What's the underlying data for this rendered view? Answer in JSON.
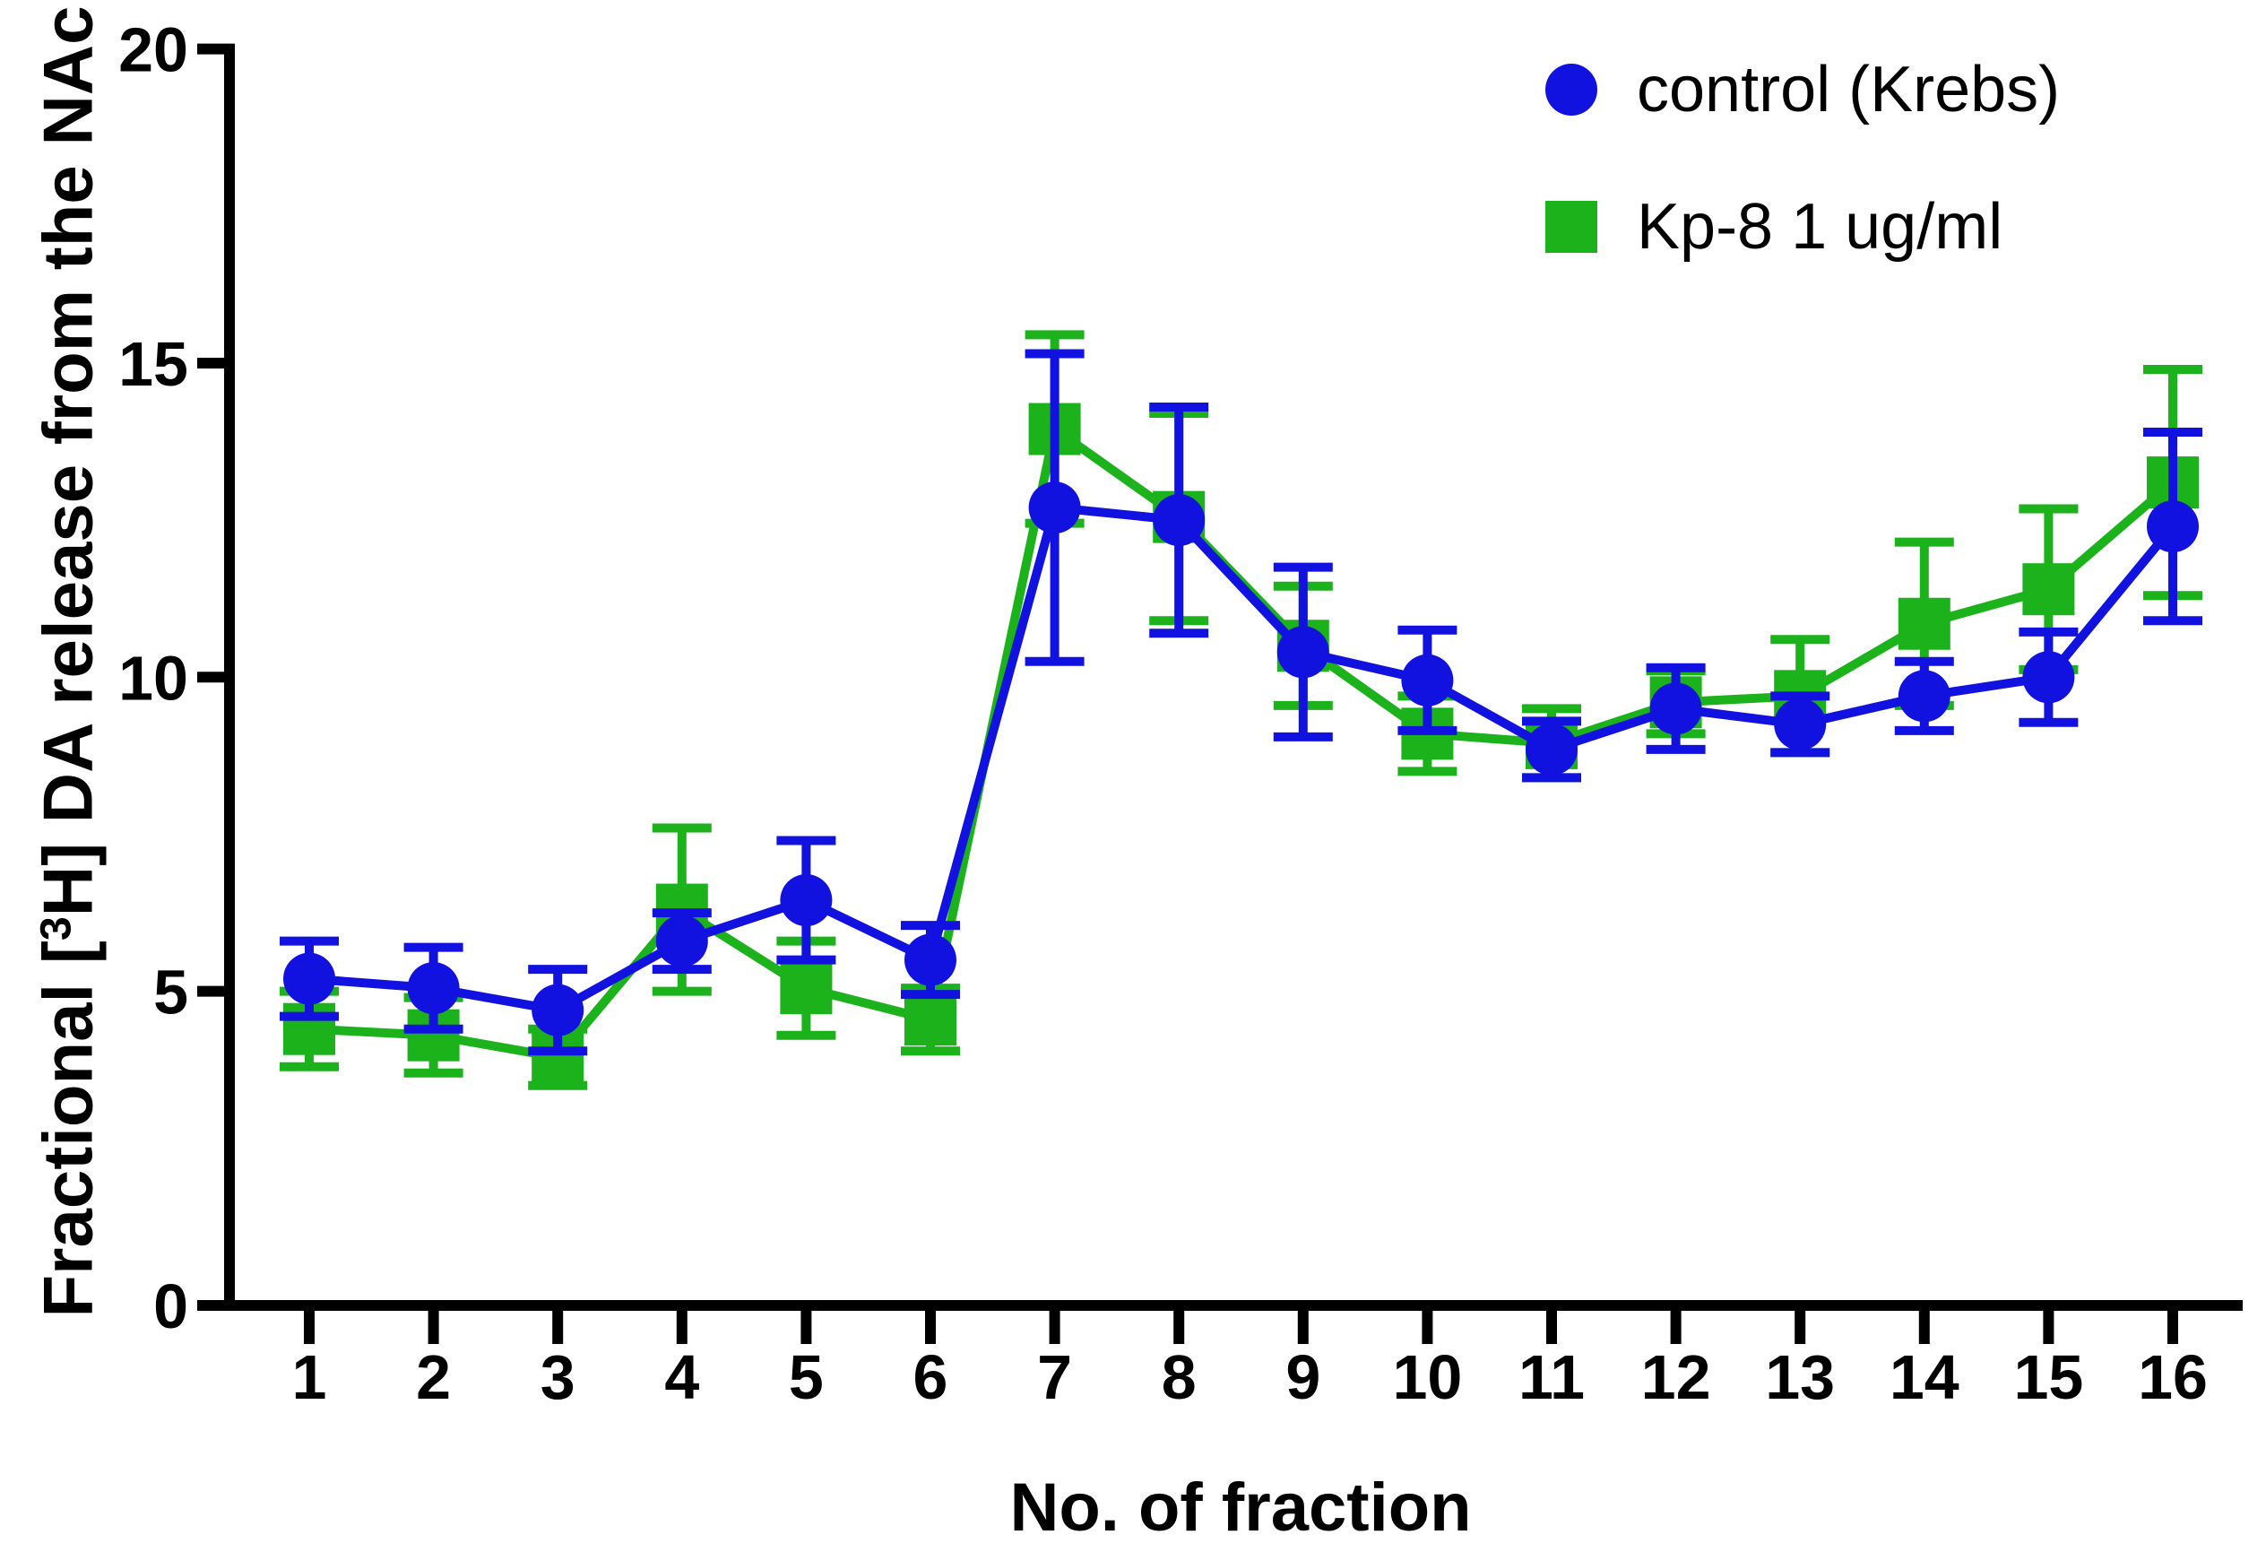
{
  "chart_data": {
    "type": "line",
    "title": "",
    "xlabel": "No. of fraction",
    "ylabel": "Fractional [3H] DA release from the NAc",
    "ylabel_parts": {
      "prefix": "Fractional [",
      "superscript": "3",
      "suffix": "H] DA release from the NAc"
    },
    "x": [
      1,
      2,
      3,
      4,
      5,
      6,
      7,
      8,
      9,
      10,
      11,
      12,
      13,
      14,
      15,
      16
    ],
    "xticks": [
      "1",
      "2",
      "3",
      "4",
      "5",
      "6",
      "7",
      "8",
      "9",
      "10",
      "11",
      "12",
      "13",
      "14",
      "15",
      "16"
    ],
    "yticks": [
      0,
      5,
      10,
      15,
      20
    ],
    "ylim": [
      0,
      20
    ],
    "grid": false,
    "legend_position": "top-right",
    "axis_color": "#000000",
    "series": [
      {
        "name": "control (Krebs)",
        "color": "#1212E0",
        "marker": "circle",
        "values": [
          5.2,
          5.05,
          4.7,
          5.8,
          6.45,
          5.5,
          12.7,
          12.5,
          10.4,
          9.95,
          8.85,
          9.5,
          9.25,
          9.7,
          10.0,
          12.4
        ],
        "errors": [
          0.6,
          0.65,
          0.65,
          0.45,
          0.95,
          0.55,
          2.45,
          1.8,
          1.35,
          0.8,
          0.45,
          0.65,
          0.45,
          0.55,
          0.72,
          1.5
        ]
      },
      {
        "name": "Kp-8 1 ug/ml",
        "color": "#1CB21C",
        "marker": "square",
        "values": [
          4.4,
          4.3,
          3.95,
          6.3,
          5.05,
          4.55,
          13.95,
          12.55,
          10.5,
          9.1,
          8.95,
          9.6,
          9.7,
          10.85,
          11.4,
          13.1
        ],
        "errors": [
          0.6,
          0.6,
          0.45,
          1.3,
          0.75,
          0.5,
          1.5,
          1.65,
          0.95,
          0.6,
          0.55,
          0.5,
          0.9,
          1.3,
          1.28,
          1.8
        ]
      }
    ]
  }
}
